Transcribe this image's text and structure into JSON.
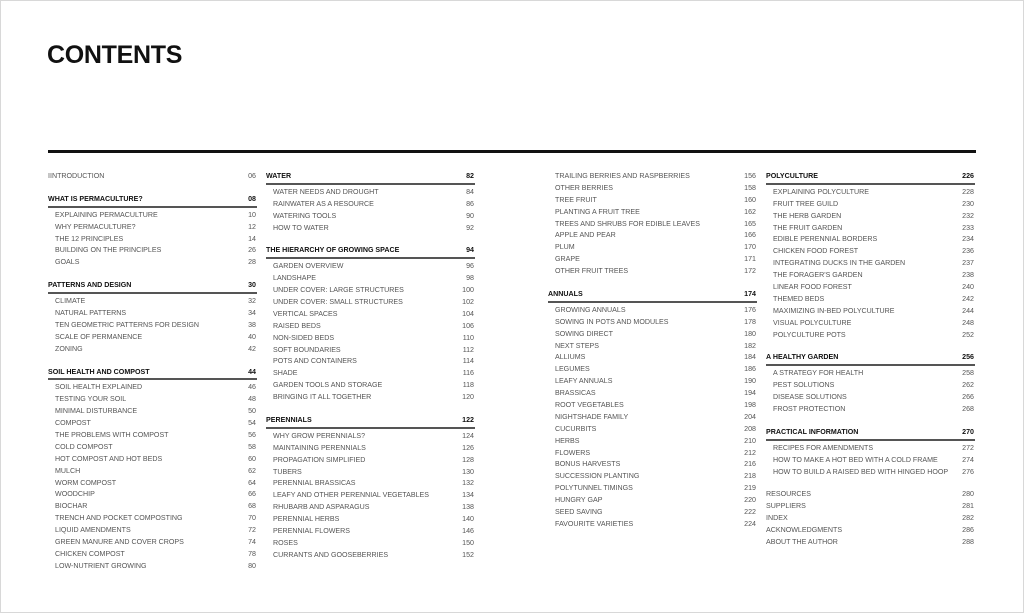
{
  "title": "CONTENTS",
  "columns": [
    {
      "blocks": [
        {
          "type": "entry",
          "entries": [
            {
              "title": "IINTRODUCTION",
              "page": "06"
            }
          ]
        },
        {
          "type": "section",
          "title": "WHAT IS PERMACULTURE?",
          "page": "08",
          "items": [
            {
              "title": "EXPLAINING PERMACULTURE",
              "page": "10"
            },
            {
              "title": "WHY PERMACULTURE?",
              "page": "12"
            },
            {
              "title": "THE 12 PRINCIPLES",
              "page": "14"
            },
            {
              "title": "BUILDING ON THE PRINCIPLES",
              "page": "26"
            },
            {
              "title": "GOALS",
              "page": "28"
            }
          ]
        },
        {
          "type": "section",
          "title": "PATTERNS AND DESIGN",
          "page": "30",
          "items": [
            {
              "title": "CLIMATE",
              "page": "32"
            },
            {
              "title": "NATURAL PATTERNS",
              "page": "34"
            },
            {
              "title": "TEN GEOMETRIC PATTERNS FOR DESIGN",
              "page": "38"
            },
            {
              "title": "SCALE OF PERMANENCE",
              "page": "40"
            },
            {
              "title": "ZONING",
              "page": "42"
            }
          ]
        },
        {
          "type": "section",
          "title": "SOIL HEALTH AND COMPOST",
          "page": "44",
          "items": [
            {
              "title": "SOIL HEALTH EXPLAINED",
              "page": "46"
            },
            {
              "title": "TESTING YOUR SOIL",
              "page": "48"
            },
            {
              "title": "MINIMAL DISTURBANCE",
              "page": "50"
            },
            {
              "title": "COMPOST",
              "page": "54"
            },
            {
              "title": "THE PROBLEMS WITH COMPOST",
              "page": "56"
            },
            {
              "title": "COLD COMPOST",
              "page": "58"
            },
            {
              "title": "HOT COMPOST AND HOT BEDS",
              "page": "60"
            },
            {
              "title": "MULCH",
              "page": "62"
            },
            {
              "title": "WORM COMPOST",
              "page": "64"
            },
            {
              "title": "WOODCHIP",
              "page": "66"
            },
            {
              "title": "BIOCHAR",
              "page": "68"
            },
            {
              "title": "TRENCH AND POCKET COMPOSTING",
              "page": "70"
            },
            {
              "title": "LIQUID AMENDMENTS",
              "page": "72"
            },
            {
              "title": "GREEN MANURE AND COVER CROPS",
              "page": "74"
            },
            {
              "title": "CHICKEN COMPOST",
              "page": "78"
            },
            {
              "title": "LOW-NUTRIENT GROWING",
              "page": "80"
            }
          ]
        }
      ]
    },
    {
      "blocks": [
        {
          "type": "section",
          "title": "WATER",
          "page": "82",
          "items": [
            {
              "title": "WATER NEEDS AND DROUGHT",
              "page": "84"
            },
            {
              "title": "RAINWATER AS A RESOURCE",
              "page": "86"
            },
            {
              "title": "WATERING TOOLS",
              "page": "90"
            },
            {
              "title": "HOW TO WATER",
              "page": "92"
            }
          ]
        },
        {
          "type": "section",
          "title": "THE HIERARCHY OF GROWING SPACE",
          "page": "94",
          "items": [
            {
              "title": "GARDEN OVERVIEW",
              "page": "96"
            },
            {
              "title": "LANDSHAPE",
              "page": "98"
            },
            {
              "title": "UNDER COVER: LARGE STRUCTURES",
              "page": "100"
            },
            {
              "title": "UNDER COVER: SMALL STRUCTURES",
              "page": "102"
            },
            {
              "title": "VERTICAL SPACES",
              "page": "104"
            },
            {
              "title": "RAISED BEDS",
              "page": "106"
            },
            {
              "title": "NON-SIDED BEDS",
              "page": "110"
            },
            {
              "title": "SOFT BOUNDARIES",
              "page": "112"
            },
            {
              "title": "POTS AND CONTAINERS",
              "page": "114"
            },
            {
              "title": "SHADE",
              "page": "116"
            },
            {
              "title": "GARDEN TOOLS AND STORAGE",
              "page": "118"
            },
            {
              "title": "BRINGING IT ALL TOGETHER",
              "page": "120"
            }
          ]
        },
        {
          "type": "section",
          "title": "PERENNIALS",
          "page": "122",
          "items": [
            {
              "title": "WHY GROW PERENNIALS?",
              "page": "124"
            },
            {
              "title": "MAINTAINING PERENNIALS",
              "page": "126"
            },
            {
              "title": "PROPAGATION SIMPLIFIED",
              "page": "128"
            },
            {
              "title": "TUBERS",
              "page": "130"
            },
            {
              "title": "PERENNIAL BRASSICAS",
              "page": "132"
            },
            {
              "title": "LEAFY AND OTHER PERENNIAL VEGETABLES",
              "page": "134"
            },
            {
              "title": "RHUBARB AND ASPARAGUS",
              "page": "138"
            },
            {
              "title": "PERENNIAL HERBS",
              "page": "140"
            },
            {
              "title": "PERENNIAL FLOWERS",
              "page": "146"
            },
            {
              "title": "ROSES",
              "page": "150"
            },
            {
              "title": "CURRANTS AND GOOSEBERRIES",
              "page": "152"
            }
          ]
        }
      ]
    },
    {
      "blocks": [
        {
          "type": "items",
          "items": [
            {
              "title": "TRAILING BERRIES AND RASPBERRIES",
              "page": "156"
            },
            {
              "title": "OTHER BERRIES",
              "page": "158"
            },
            {
              "title": "TREE FRUIT",
              "page": "160"
            },
            {
              "title": "PLANTING A FRUIT TREE",
              "page": "162"
            },
            {
              "title": "TREES AND SHRUBS FOR EDIBLE LEAVES",
              "page": "165"
            },
            {
              "title": "APPLE AND PEAR",
              "page": "166"
            },
            {
              "title": "PLUM",
              "page": "170"
            },
            {
              "title": "GRAPE",
              "page": "171"
            },
            {
              "title": "OTHER FRUIT TREES",
              "page": "172"
            }
          ]
        },
        {
          "type": "section",
          "title": "ANNUALS",
          "page": "174",
          "items": [
            {
              "title": "GROWING ANNUALS",
              "page": "176"
            },
            {
              "title": "SOWING IN POTS AND MODULES",
              "page": "178"
            },
            {
              "title": "SOWING DIRECT",
              "page": "180"
            },
            {
              "title": "NEXT STEPS",
              "page": "182"
            },
            {
              "title": "ALLIUMS",
              "page": "184"
            },
            {
              "title": "LEGUMES",
              "page": "186"
            },
            {
              "title": "LEAFY ANNUALS",
              "page": "190"
            },
            {
              "title": "BRASSICAS",
              "page": "194"
            },
            {
              "title": "ROOT VEGETABLES",
              "page": "198"
            },
            {
              "title": "NIGHTSHADE FAMILY",
              "page": "204"
            },
            {
              "title": "CUCURBITS",
              "page": "208"
            },
            {
              "title": "HERBS",
              "page": "210"
            },
            {
              "title": "FLOWERS",
              "page": "212"
            },
            {
              "title": "BONUS HARVESTS",
              "page": "216"
            },
            {
              "title": "SUCCESSION PLANTING",
              "page": "218"
            },
            {
              "title": "POLYTUNNEL TIMINGS",
              "page": "219"
            },
            {
              "title": "HUNGRY GAP",
              "page": "220"
            },
            {
              "title": "SEED SAVING",
              "page": "222"
            },
            {
              "title": "FAVOURITE VARIETIES",
              "page": "224"
            }
          ]
        }
      ]
    },
    {
      "blocks": [
        {
          "type": "section",
          "title": "POLYCULTURE",
          "page": "226",
          "items": [
            {
              "title": "EXPLAINING POLYCULTURE",
              "page": "228"
            },
            {
              "title": "FRUIT TREE GUILD",
              "page": "230"
            },
            {
              "title": "THE HERB GARDEN",
              "page": "232"
            },
            {
              "title": "THE FRUIT GARDEN",
              "page": "233"
            },
            {
              "title": "EDIBLE PERENNIAL BORDERS",
              "page": "234"
            },
            {
              "title": "CHICKEN FOOD FOREST",
              "page": "236"
            },
            {
              "title": "INTEGRATING DUCKS IN THE GARDEN",
              "page": "237"
            },
            {
              "title": "THE FORAGER'S GARDEN",
              "page": "238"
            },
            {
              "title": "LINEAR FOOD FOREST",
              "page": "240"
            },
            {
              "title": "THEMED BEDS",
              "page": "242"
            },
            {
              "title": "MAXIMIZING IN-BED POLYCULTURE",
              "page": "244"
            },
            {
              "title": "VISUAL POLYCULTURE",
              "page": "248"
            },
            {
              "title": "POLYCULTURE POTS",
              "page": "252"
            }
          ]
        },
        {
          "type": "section",
          "title": "A HEALTHY GARDEN",
          "page": "256",
          "items": [
            {
              "title": "A STRATEGY FOR HEALTH",
              "page": "258"
            },
            {
              "title": "PEST SOLUTIONS",
              "page": "262"
            },
            {
              "title": "DISEASE SOLUTIONS",
              "page": "266"
            },
            {
              "title": "FROST PROTECTION",
              "page": "268"
            }
          ]
        },
        {
          "type": "section",
          "title": "PRACTICAL INFORMATION",
          "page": "270",
          "items": [
            {
              "title": "RECIPES FOR AMENDMENTS",
              "page": "272"
            },
            {
              "title": "HOW TO MAKE A HOT BED WITH A COLD FRAME",
              "page": "274"
            },
            {
              "title": "HOW TO BUILD A RAISED BED WITH HINGED HOOP",
              "page": "276"
            }
          ]
        },
        {
          "type": "entry",
          "entries": [
            {
              "title": "RESOURCES",
              "page": "280"
            },
            {
              "title": "SUPPLIERS",
              "page": "281"
            },
            {
              "title": "INDEX",
              "page": "282"
            },
            {
              "title": "ACKNOWLEDGMENTS",
              "page": "286"
            },
            {
              "title": "ABOUT THE AUTHOR",
              "page": "288"
            }
          ]
        }
      ]
    }
  ]
}
